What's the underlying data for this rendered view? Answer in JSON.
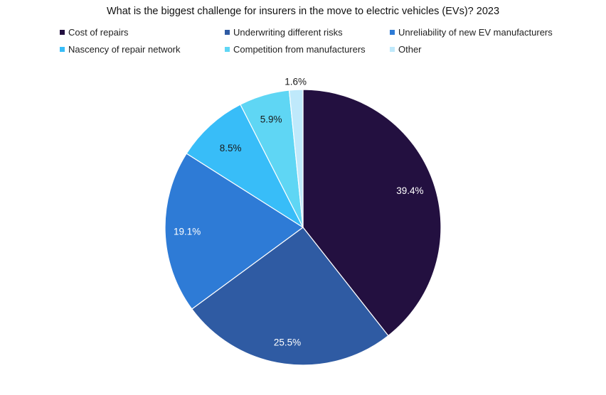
{
  "chart_data": {
    "type": "pie",
    "title": "What is the biggest challenge for insurers in the move to electric vehicles (EVs)? 2023",
    "legend_position": "top",
    "slices": [
      {
        "name": "Cost of repairs",
        "value": 39.4,
        "label": "39.4%",
        "color": "#231040",
        "label_color": "#ffffff"
      },
      {
        "name": "Underwriting different risks",
        "value": 25.5,
        "label": "25.5%",
        "color": "#2f5ba3",
        "label_color": "#ffffff"
      },
      {
        "name": "Unreliability of new EV manufacturers",
        "value": 19.1,
        "label": "19.1%",
        "color": "#2e7bd6",
        "label_color": "#ffffff"
      },
      {
        "name": "Nascency of repair network",
        "value": 8.5,
        "label": "8.5%",
        "color": "#38bdf8",
        "label_color": "#1a1a1a"
      },
      {
        "name": "Competition from manufacturers",
        "value": 5.9,
        "label": "5.9%",
        "color": "#5fd6f4",
        "label_color": "#1a1a1a"
      },
      {
        "name": "Other",
        "value": 1.6,
        "label": "1.6%",
        "color": "#bfe9fb",
        "label_color": "#1a1a1a"
      }
    ]
  }
}
